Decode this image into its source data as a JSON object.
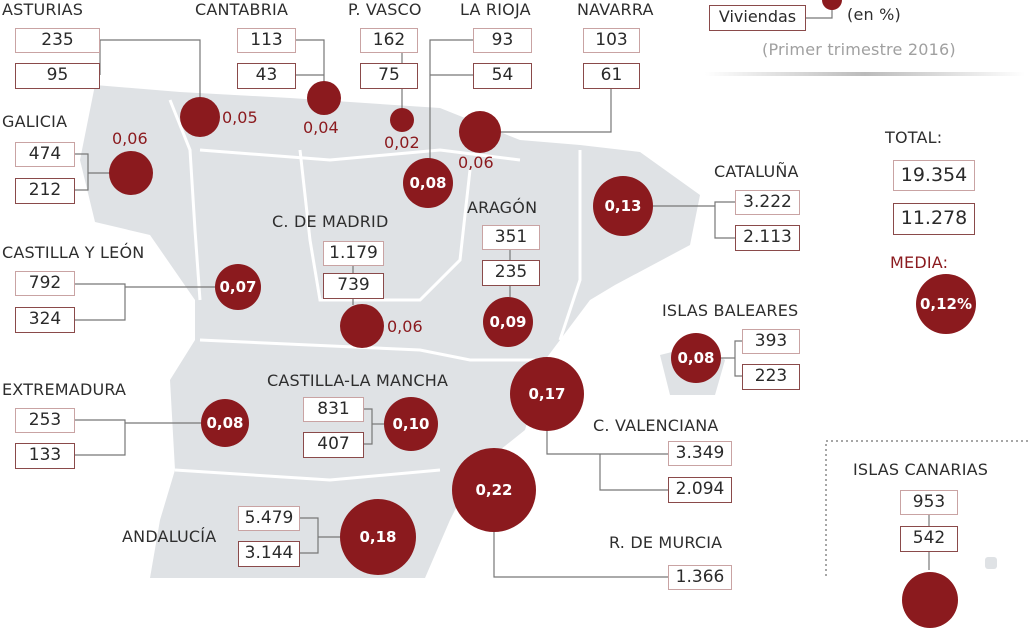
{
  "legend": {
    "viviendas_label": "Viviendas",
    "percent_label": "(en %)",
    "period": "(Primer trimestre 2016)"
  },
  "regions": [
    {
      "id": "asturias",
      "name": "ASTURIAS",
      "v1": "235",
      "v2": "95",
      "pct": "0,05"
    },
    {
      "id": "cantabria",
      "name": "CANTABRIA",
      "v1": "113",
      "v2": "43",
      "pct": "0,04"
    },
    {
      "id": "pvasco",
      "name": "P. VASCO",
      "v1": "162",
      "v2": "75",
      "pct": "0,02"
    },
    {
      "id": "larioja",
      "name": "LA RIOJA",
      "v1": "93",
      "v2": "54",
      "pct": "0,08"
    },
    {
      "id": "navarra",
      "name": "NAVARRA",
      "v1": "103",
      "v2": "61",
      "pct": "0,06"
    },
    {
      "id": "galicia",
      "name": "GALICIA",
      "v1": "474",
      "v2": "212",
      "pct": "0,06"
    },
    {
      "id": "cyl",
      "name": "CASTILLA Y LEÓN",
      "v1": "792",
      "v2": "324",
      "pct": "0,07"
    },
    {
      "id": "madrid",
      "name": "C. DE MADRID",
      "v1": "1.179",
      "v2": "739",
      "pct": "0,06"
    },
    {
      "id": "aragon",
      "name": "ARAGÓN",
      "v1": "351",
      "v2": "235",
      "pct": "0,09"
    },
    {
      "id": "cataluna",
      "name": "CATALUÑA",
      "v1": "3.222",
      "v2": "2.113",
      "pct": "0,13"
    },
    {
      "id": "baleares",
      "name": "ISLAS BALEARES",
      "v1": "393",
      "v2": "223",
      "pct": "0,08"
    },
    {
      "id": "extremadura",
      "name": "EXTREMADURA",
      "v1": "253",
      "v2": "133",
      "pct": "0,08"
    },
    {
      "id": "clm",
      "name": "CASTILLA-LA MANCHA",
      "v1": "831",
      "v2": "407",
      "pct": "0,10"
    },
    {
      "id": "valencia",
      "name": "C. VALENCIANA",
      "v1": "3.349",
      "v2": "2.094",
      "pct": "0,17"
    },
    {
      "id": "murcia",
      "name": "R. DE MURCIA",
      "v1": "1.366",
      "v2": "",
      "pct": "0,22"
    },
    {
      "id": "andalucia",
      "name": "ANDALUCÍA",
      "v1": "5.479",
      "v2": "3.144",
      "pct": "0,18"
    },
    {
      "id": "canarias",
      "name": "ISLAS CANARIAS",
      "v1": "953",
      "v2": "542",
      "pct": ""
    }
  ],
  "total": {
    "label": "TOTAL:",
    "v1": "19.354",
    "v2": "11.278",
    "media_label": "MEDIA:",
    "media_value": "0,12%"
  },
  "colors": {
    "accent": "#8b1a1e",
    "map": "#dfe2e5"
  }
}
